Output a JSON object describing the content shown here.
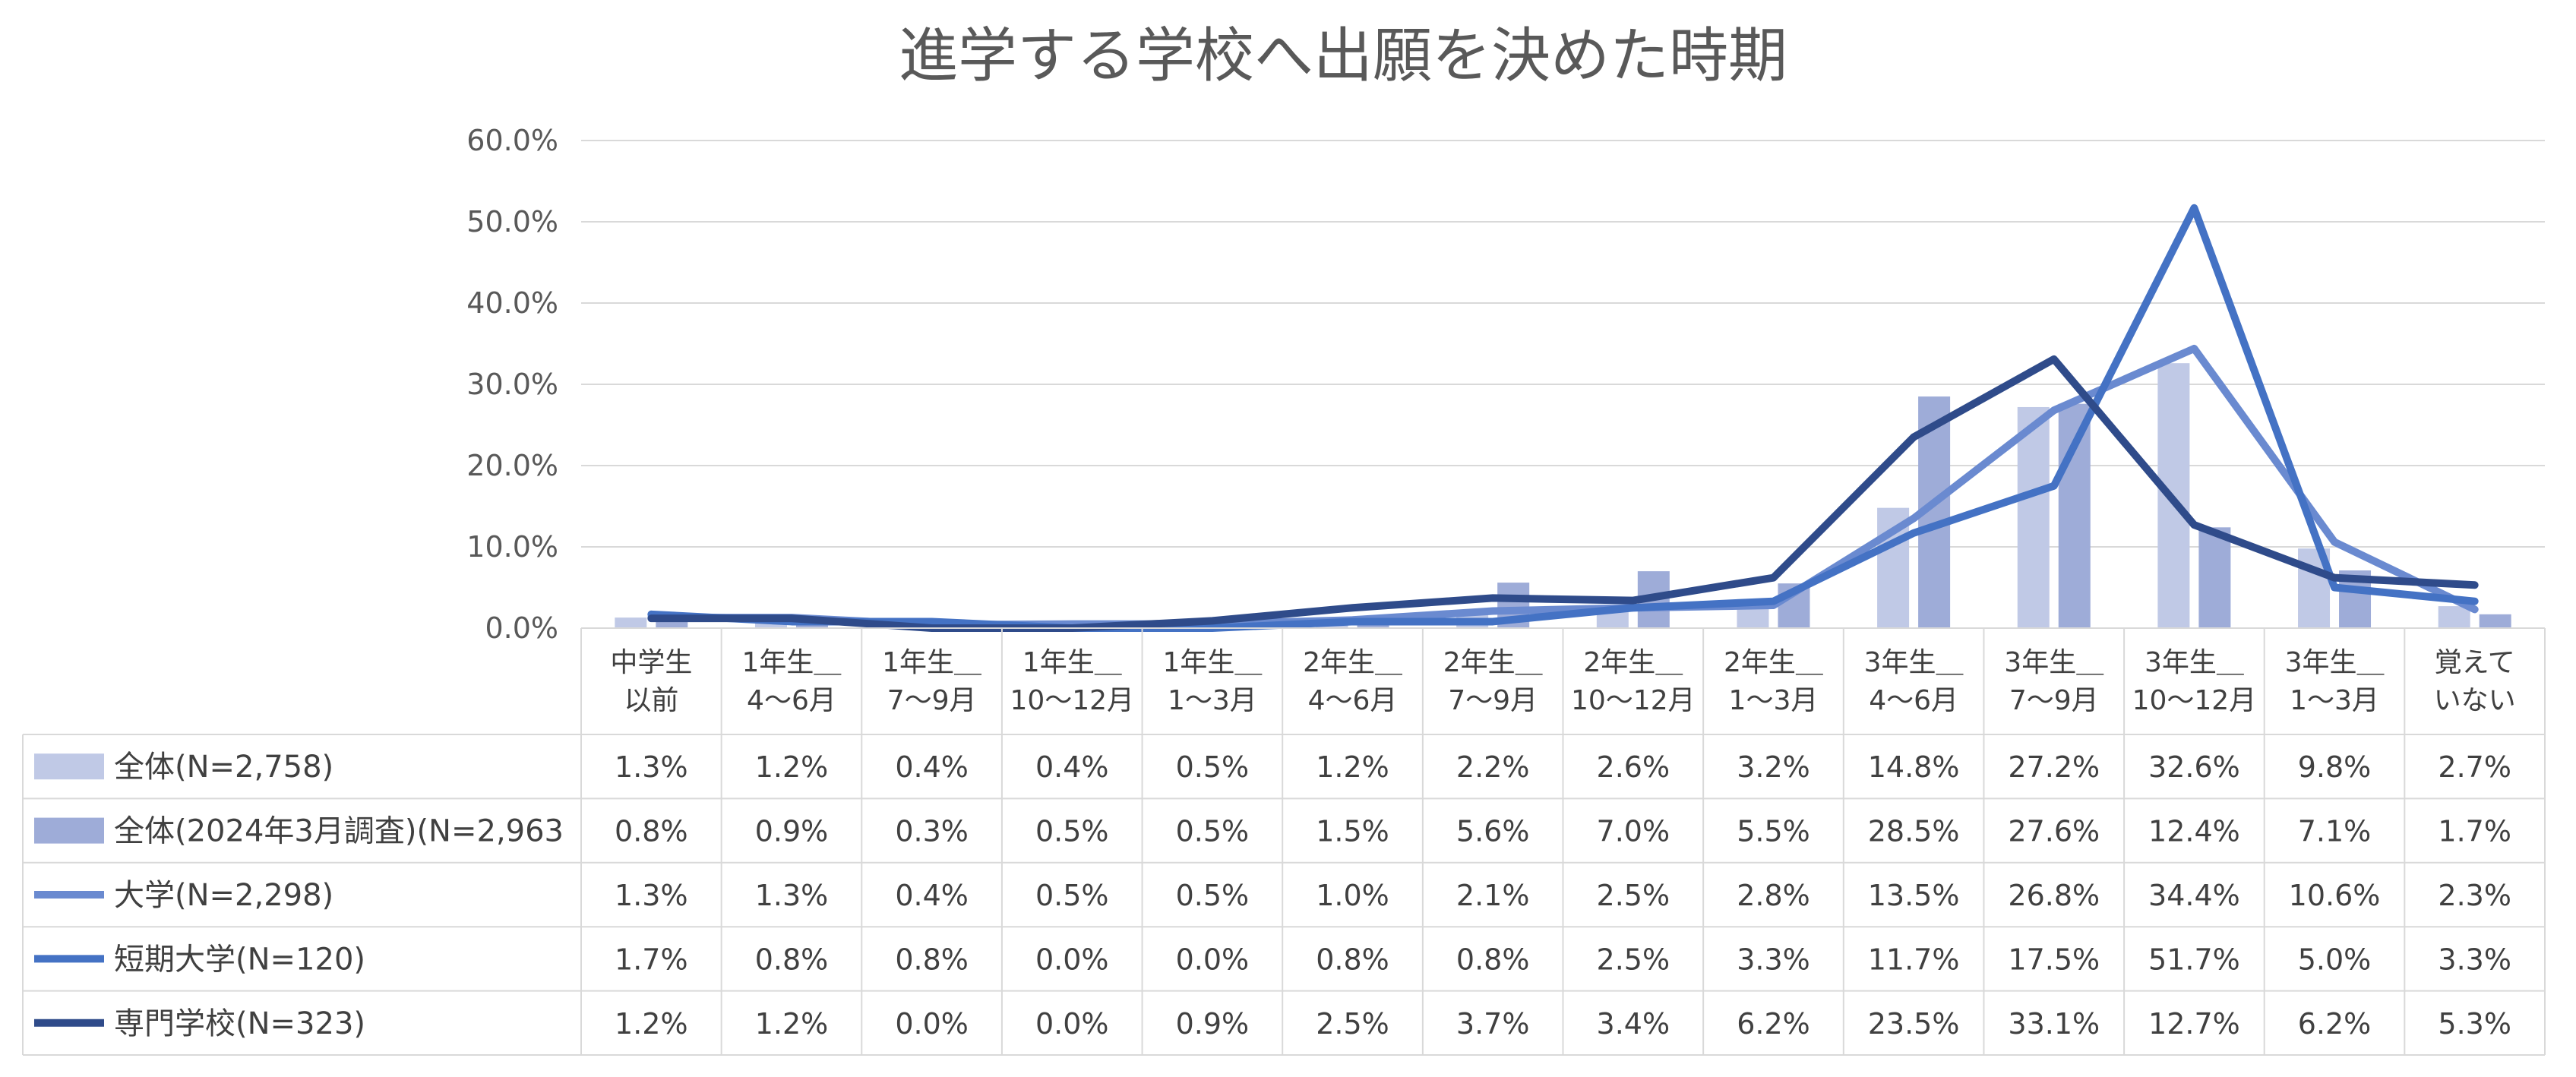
{
  "chart_data": {
    "type": "bar",
    "title": "進学する学校へ出願を決めた時期",
    "ylim": [
      0,
      60
    ],
    "yticks": [
      "0.0%",
      "10.0%",
      "20.0%",
      "30.0%",
      "40.0%",
      "50.0%",
      "60.0%"
    ],
    "grid": true,
    "legend_placement": "data-table-left",
    "categories": [
      [
        "中学生",
        "以前"
      ],
      [
        "1年生＿",
        "4～6月"
      ],
      [
        "1年生＿",
        "7～9月"
      ],
      [
        "1年生＿",
        "10～12月"
      ],
      [
        "1年生＿",
        "1～3月"
      ],
      [
        "2年生＿",
        "4～6月"
      ],
      [
        "2年生＿",
        "7～9月"
      ],
      [
        "2年生＿",
        "10～12月"
      ],
      [
        "2年生＿",
        "1～3月"
      ],
      [
        "3年生＿",
        "4～6月"
      ],
      [
        "3年生＿",
        "7～9月"
      ],
      [
        "3年生＿",
        "10～12月"
      ],
      [
        "3年生＿",
        "1～3月"
      ],
      [
        "覚えて",
        "いない"
      ]
    ],
    "series": [
      {
        "name": "全体(N=2,758)",
        "kind": "bar",
        "color": "#c0c9e6",
        "values": [
          1.3,
          1.2,
          0.4,
          0.4,
          0.5,
          1.2,
          2.2,
          2.6,
          3.2,
          14.8,
          27.2,
          32.6,
          9.8,
          2.7
        ],
        "labels": [
          "1.3%",
          "1.2%",
          "0.4%",
          "0.4%",
          "0.5%",
          "1.2%",
          "2.2%",
          "2.6%",
          "3.2%",
          "14.8%",
          "27.2%",
          "32.6%",
          "9.8%",
          "2.7%"
        ]
      },
      {
        "name": "全体(2024年3月調査)(N=2,963",
        "kind": "bar",
        "color": "#9eacd8",
        "values": [
          0.8,
          0.9,
          0.3,
          0.5,
          0.5,
          1.5,
          5.6,
          7.0,
          5.5,
          28.5,
          27.6,
          12.4,
          7.1,
          1.7
        ],
        "labels": [
          "0.8%",
          "0.9%",
          "0.3%",
          "0.5%",
          "0.5%",
          "1.5%",
          "5.6%",
          "7.0%",
          "5.5%",
          "28.5%",
          "27.6%",
          "12.4%",
          "7.1%",
          "1.7%"
        ]
      },
      {
        "name": "大学(N=2,298)",
        "kind": "line",
        "color": "#6a8ad0",
        "values": [
          1.3,
          1.3,
          0.4,
          0.5,
          0.5,
          1.0,
          2.1,
          2.5,
          2.8,
          13.5,
          26.8,
          34.4,
          10.6,
          2.3
        ],
        "labels": [
          "1.3%",
          "1.3%",
          "0.4%",
          "0.5%",
          "0.5%",
          "1.0%",
          "2.1%",
          "2.5%",
          "2.8%",
          "13.5%",
          "26.8%",
          "34.4%",
          "10.6%",
          "2.3%"
        ]
      },
      {
        "name": "短期大学(N=120)",
        "kind": "line",
        "color": "#4472c4",
        "values": [
          1.7,
          0.8,
          0.8,
          0.0,
          0.0,
          0.8,
          0.8,
          2.5,
          3.3,
          11.7,
          17.5,
          51.7,
          5.0,
          3.3
        ],
        "labels": [
          "1.7%",
          "0.8%",
          "0.8%",
          "0.0%",
          "0.0%",
          "0.8%",
          "0.8%",
          "2.5%",
          "3.3%",
          "11.7%",
          "17.5%",
          "51.7%",
          "5.0%",
          "3.3%"
        ]
      },
      {
        "name": "専門学校(N=323)",
        "kind": "line",
        "color": "#2f4b8a",
        "values": [
          1.2,
          1.2,
          0.0,
          0.0,
          0.9,
          2.5,
          3.7,
          3.4,
          6.2,
          23.5,
          33.1,
          12.7,
          6.2,
          5.3
        ],
        "labels": [
          "1.2%",
          "1.2%",
          "0.0%",
          "0.0%",
          "0.9%",
          "2.5%",
          "3.7%",
          "3.4%",
          "6.2%",
          "23.5%",
          "33.1%",
          "12.7%",
          "6.2%",
          "5.3%"
        ]
      }
    ]
  }
}
